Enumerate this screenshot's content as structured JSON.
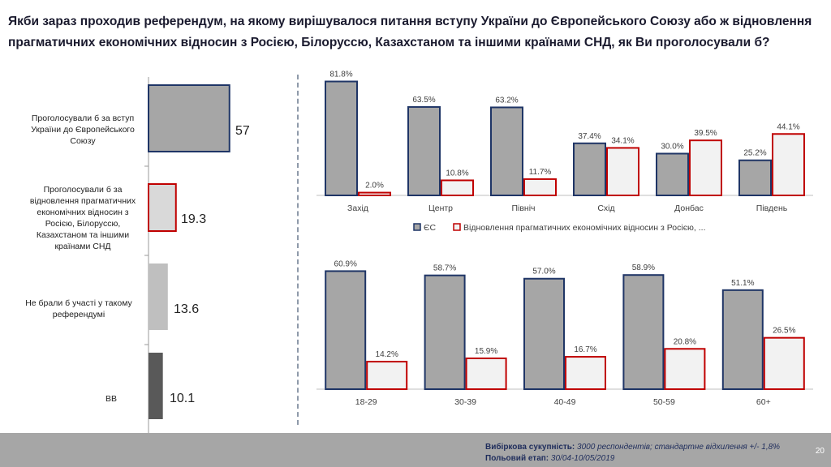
{
  "title": "Якби зараз проходив референдум, на якому вирішувалося питання вступу України до Європейського Союзу або ж відновлення прагматичних економічних відносин з Росією, Білоруссю, Казахстаном та іншими країнами СНД, як Ви проголосували б?",
  "footer": {
    "sample_label": "Вибіркова сукупність:",
    "sample_text": "3000 респондентів; стандартне відхилення +/- 1,8%",
    "field_label": "Польовий етап:",
    "field_text": "30/04-10/05/2019",
    "page": "20"
  },
  "colors": {
    "eu_fill": "#a6a6a6",
    "eu_border": "#1f3566",
    "other_fill": "#f2f2f2",
    "other_border": "#c00000"
  },
  "chart_data": [
    {
      "type": "bar",
      "orientation": "horizontal",
      "categories": [
        "Проголосували б за вступ України до Європейського Союзу",
        "Проголосували б за відновлення прагматичних економічних відносин з Росією, Білоруссю, Казахстаном та іншими країнами СНД",
        "Не брали б участі у такому референдумі",
        "ВВ"
      ],
      "values": [
        57,
        19.3,
        13.6,
        10.1
      ],
      "value_labels": [
        "57",
        "19.3",
        "13.6",
        "10.1"
      ],
      "xlim": [
        0,
        100
      ]
    },
    {
      "type": "bar",
      "categories": [
        "Захід",
        "Центр",
        "Північ",
        "Схід",
        "Донбас",
        "Південь"
      ],
      "series": [
        {
          "name": "ЄС",
          "values": [
            81.8,
            63.5,
            63.2,
            37.4,
            30.0,
            25.2
          ],
          "labels": [
            "81.8%",
            "63.5%",
            "63.2%",
            "37.4%",
            "30.0%",
            "25.2%"
          ]
        },
        {
          "name": "Відновлення прагматичних економічних відносин з Росією, ...",
          "values": [
            2.0,
            10.8,
            11.7,
            34.1,
            39.5,
            44.1
          ],
          "labels": [
            "2.0%",
            "10.8%",
            "11.7%",
            "34.1%",
            "39.5%",
            "44.1%"
          ]
        }
      ],
      "legend": [
        "ЄС",
        "Відновлення прагматичних економічних відносин з Росією, ..."
      ],
      "ylim": [
        0,
        85
      ]
    },
    {
      "type": "bar",
      "categories": [
        "18-29",
        "30-39",
        "40-49",
        "50-59",
        "60+"
      ],
      "series": [
        {
          "name": "ЄС",
          "values": [
            60.9,
            58.7,
            57.0,
            58.9,
            51.1
          ],
          "labels": [
            "60.9%",
            "58.7%",
            "57.0%",
            "58.9%",
            "51.1%"
          ]
        },
        {
          "name": "Відновлення прагматичних економічних відносин з Росією, ...",
          "values": [
            14.2,
            15.9,
            16.7,
            20.8,
            26.5
          ],
          "labels": [
            "14.2%",
            "15.9%",
            "16.7%",
            "20.8%",
            "26.5%"
          ]
        }
      ],
      "ylim": [
        0,
        64
      ]
    }
  ]
}
